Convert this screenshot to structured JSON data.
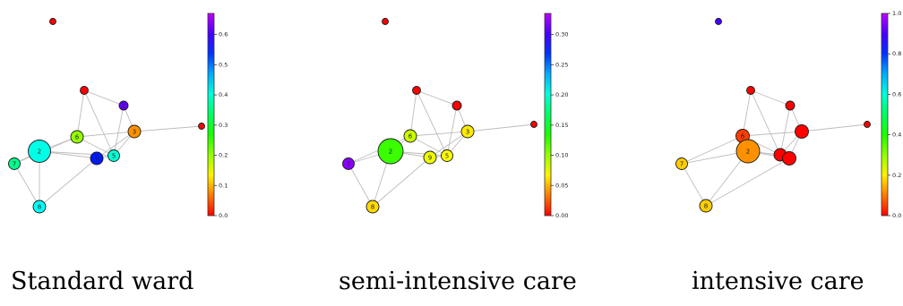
{
  "edges": [
    [
      1,
      4
    ],
    [
      1,
      3
    ],
    [
      1,
      5
    ],
    [
      3,
      6
    ],
    [
      3,
      5
    ],
    [
      3,
      11
    ],
    [
      3,
      9
    ],
    [
      4,
      6
    ],
    [
      4,
      5
    ],
    [
      6,
      2
    ],
    [
      6,
      7
    ],
    [
      6,
      5
    ],
    [
      5,
      2
    ],
    [
      5,
      9
    ],
    [
      7,
      2
    ],
    [
      7,
      8
    ],
    [
      8,
      2
    ],
    [
      8,
      9
    ],
    [
      2,
      9
    ]
  ],
  "panels": [
    {
      "caption": "Standard ward",
      "scale_max": 0.67,
      "ticks": [
        "0.0",
        "0.1",
        "0.2",
        "0.3",
        "0.4",
        "0.5",
        "0.6"
      ],
      "nodes": [
        {
          "id": "10",
          "label": "",
          "value": 0.0
        },
        {
          "id": "4",
          "label": "",
          "value": 0.0
        },
        {
          "id": "1",
          "label": "1",
          "value": 0.62
        },
        {
          "id": "11",
          "label": "",
          "value": 0.0
        },
        {
          "id": "6",
          "label": "6",
          "value": 0.2
        },
        {
          "id": "3",
          "label": "3",
          "value": 0.08
        },
        {
          "id": "5",
          "label": "5",
          "value": 0.4
        },
        {
          "id": "7",
          "label": "7",
          "value": 0.36
        },
        {
          "id": "2",
          "label": "2",
          "value": 0.41
        },
        {
          "id": "9",
          "label": "9",
          "value": 0.55
        },
        {
          "id": "8",
          "label": "8",
          "value": 0.42
        }
      ]
    },
    {
      "caption": "semi-intensive care",
      "scale_max": 0.335,
      "ticks": [
        "0.00",
        "0.05",
        "0.10",
        "0.15",
        "0.20",
        "0.25",
        "0.30"
      ],
      "nodes": [
        {
          "id": "10",
          "label": "",
          "value": 0.0
        },
        {
          "id": "4",
          "label": "",
          "value": 0.0
        },
        {
          "id": "1",
          "label": "",
          "value": 0.0
        },
        {
          "id": "11",
          "label": "",
          "value": 0.0
        },
        {
          "id": "6",
          "label": "6",
          "value": 0.085
        },
        {
          "id": "3",
          "label": "3",
          "value": 0.065
        },
        {
          "id": "5",
          "label": "5",
          "value": 0.07
        },
        {
          "id": "7",
          "label": "7",
          "value": 0.32
        },
        {
          "id": "2",
          "label": "2",
          "value": 0.125
        },
        {
          "id": "9",
          "label": "9",
          "value": 0.075
        },
        {
          "id": "8",
          "label": "8",
          "value": 0.06
        }
      ]
    },
    {
      "caption": "intensive care",
      "scale_max": 1.0,
      "ticks": [
        "0.0",
        "0.2",
        "0.4",
        "0.6",
        "0.8",
        "1.0"
      ],
      "nodes": [
        {
          "id": "10",
          "label": "",
          "value": 0.9
        },
        {
          "id": "4",
          "label": "",
          "value": 0.0
        },
        {
          "id": "1",
          "label": "",
          "value": 0.0
        },
        {
          "id": "11",
          "label": "",
          "value": 0.0
        },
        {
          "id": "6",
          "label": "6",
          "value": 0.05
        },
        {
          "id": "3",
          "label": "",
          "value": 0.0
        },
        {
          "id": "5",
          "label": "",
          "value": 0.0
        },
        {
          "id": "7",
          "label": "7",
          "value": 0.17
        },
        {
          "id": "2",
          "label": "2",
          "value": 0.12
        },
        {
          "id": "9",
          "label": "",
          "value": 0.0
        },
        {
          "id": "8",
          "label": "8",
          "value": 0.17
        }
      ]
    }
  ]
}
